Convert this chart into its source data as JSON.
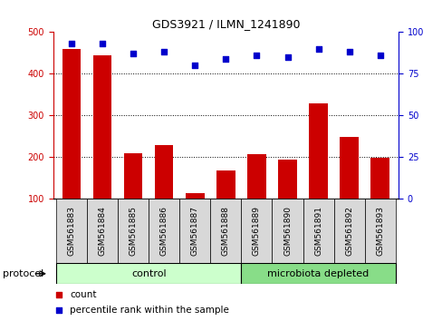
{
  "title": "GDS3921 / ILMN_1241890",
  "samples": [
    "GSM561883",
    "GSM561884",
    "GSM561885",
    "GSM561886",
    "GSM561887",
    "GSM561888",
    "GSM561889",
    "GSM561890",
    "GSM561891",
    "GSM561892",
    "GSM561893"
  ],
  "counts": [
    460,
    445,
    210,
    230,
    113,
    168,
    207,
    195,
    330,
    248,
    198
  ],
  "percentile_ranks": [
    93,
    93,
    87,
    88,
    80,
    84,
    86,
    85,
    90,
    88,
    86
  ],
  "bar_color": "#cc0000",
  "dot_color": "#0000cc",
  "left_yaxis_color": "#cc0000",
  "right_yaxis_color": "#0000cc",
  "ylim_left": [
    100,
    500
  ],
  "ylim_right": [
    0,
    100
  ],
  "left_yticks": [
    100,
    200,
    300,
    400,
    500
  ],
  "right_yticks": [
    0,
    25,
    50,
    75,
    100
  ],
  "grid_lines": [
    200,
    300,
    400
  ],
  "n_control": 6,
  "n_microbiota": 5,
  "control_color": "#ccffcc",
  "microbiota_color": "#88dd88",
  "protocol_label": "protocol",
  "control_label": "control",
  "microbiota_label": "microbiota depleted",
  "legend_count_label": "count",
  "legend_pct_label": "percentile rank within the sample",
  "bar_width": 0.6,
  "tick_bg_color": "#d8d8d8",
  "plot_bg_color": "white"
}
